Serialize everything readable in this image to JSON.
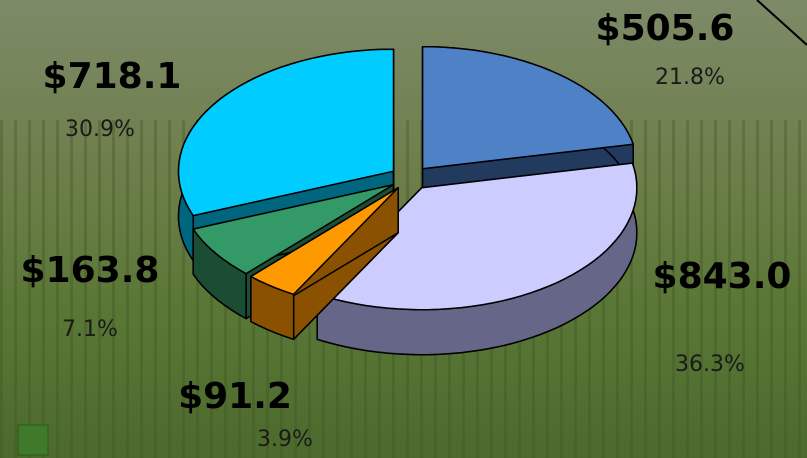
{
  "chart_data": {
    "type": "pie",
    "values": [
      505.6,
      843.0,
      91.2,
      163.8,
      718.1
    ],
    "value_labels": [
      "$505.6",
      "$843.0",
      "$91.2",
      "$163.8",
      "$718.1"
    ],
    "percent_labels": [
      "21.8%",
      "36.3%",
      "3.9%",
      "7.1%",
      "30.9%"
    ],
    "colors": [
      "#4f81c7",
      "#ccccff",
      "#ff9900",
      "#339966",
      "#00ccff"
    ],
    "side_colors": [
      "#223a5e",
      "#666688",
      "#8a5200",
      "#1a4d33",
      "#006680"
    ]
  }
}
